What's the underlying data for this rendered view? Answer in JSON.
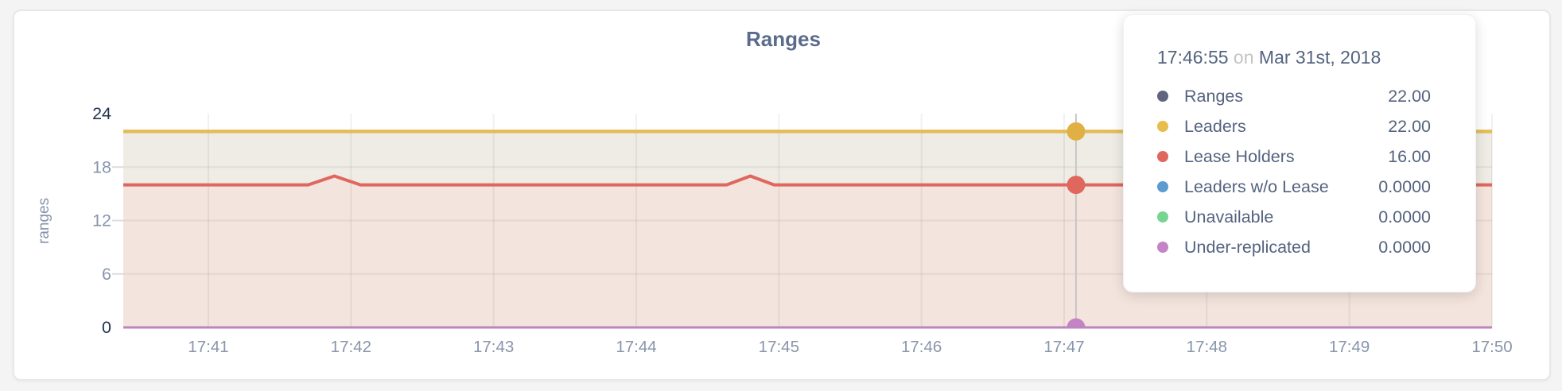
{
  "chart": {
    "title": "Ranges",
    "ylabel": "ranges"
  },
  "chart_data": {
    "type": "area",
    "title": "Ranges",
    "xlabel": "",
    "ylabel": "ranges",
    "ylim": [
      0,
      24
    ],
    "y_ticks": [
      0,
      6,
      12,
      18,
      24
    ],
    "x_ticks": [
      "17:41",
      "17:42",
      "17:43",
      "17:44",
      "17:45",
      "17:46",
      "17:47",
      "17:48",
      "17:49",
      "17:50"
    ],
    "x_range": [
      "17:40:24",
      "17:50:00"
    ],
    "grid": true,
    "series": [
      {
        "name": "Ranges",
        "color": "#60647e",
        "width": 4,
        "area_color": null,
        "points": [
          [
            "17:40:24",
            22
          ],
          [
            "17:50:00",
            22
          ]
        ]
      },
      {
        "name": "Leaders",
        "color": "#e8bc4d",
        "width": 4,
        "area_color": "#eeece4",
        "points": [
          [
            "17:40:24",
            22
          ],
          [
            "17:50:00",
            22
          ]
        ]
      },
      {
        "name": "Lease Holders",
        "color": "#df675e",
        "width": 4,
        "area_color": "#f3e4dd",
        "points": [
          [
            "17:40:24",
            16
          ],
          [
            "17:41:42",
            16
          ],
          [
            "17:41:53",
            17
          ],
          [
            "17:42:04",
            16
          ],
          [
            "17:44:38",
            16
          ],
          [
            "17:44:48",
            17
          ],
          [
            "17:44:58",
            16
          ],
          [
            "17:50:00",
            16
          ]
        ]
      },
      {
        "name": "Leaders w/o Lease",
        "color": "#5b9bd1",
        "width": 3,
        "area_color": null,
        "points": [
          [
            "17:40:24",
            0
          ],
          [
            "17:50:00",
            0
          ]
        ]
      },
      {
        "name": "Unavailable",
        "color": "#77d592",
        "width": 3,
        "area_color": null,
        "points": [
          [
            "17:40:24",
            0
          ],
          [
            "17:50:00",
            0
          ]
        ]
      },
      {
        "name": "Under-replicated",
        "color": "#bb86be",
        "width": 3,
        "area_color": null,
        "points": [
          [
            "17:40:24",
            0
          ],
          [
            "17:50:00",
            0
          ]
        ]
      }
    ],
    "hover": {
      "time": "17:47:05",
      "line_color": "#c7c7c7",
      "markers": [
        {
          "series": "Leaders",
          "value": 22,
          "color": "#e0b044"
        },
        {
          "series": "Lease Holders",
          "value": 16,
          "color": "#df675e"
        },
        {
          "series": "Under-replicated",
          "value": 0,
          "color": "#c583c5"
        }
      ]
    },
    "legend_position": "tooltip"
  },
  "tooltip": {
    "time": "17:46:55",
    "connector": "on",
    "date": "Mar 31st, 2018",
    "rows": [
      {
        "label": "Ranges",
        "value": "22.00",
        "color": "#60647e"
      },
      {
        "label": "Leaders",
        "value": "22.00",
        "color": "#e8bc4d"
      },
      {
        "label": "Lease Holders",
        "value": "16.00",
        "color": "#df675e"
      },
      {
        "label": "Leaders w/o Lease",
        "value": "0.0000",
        "color": "#5b9bd1"
      },
      {
        "label": "Unavailable",
        "value": "0.0000",
        "color": "#77d592"
      },
      {
        "label": "Under-replicated",
        "value": "0.0000",
        "color": "#c583c5"
      }
    ]
  },
  "colors": {
    "axis_label": "#8995ab",
    "axis_label_emph": "#233251",
    "grid": "rgba(0,0,0,0.055)",
    "title": "#5a6b8c"
  }
}
